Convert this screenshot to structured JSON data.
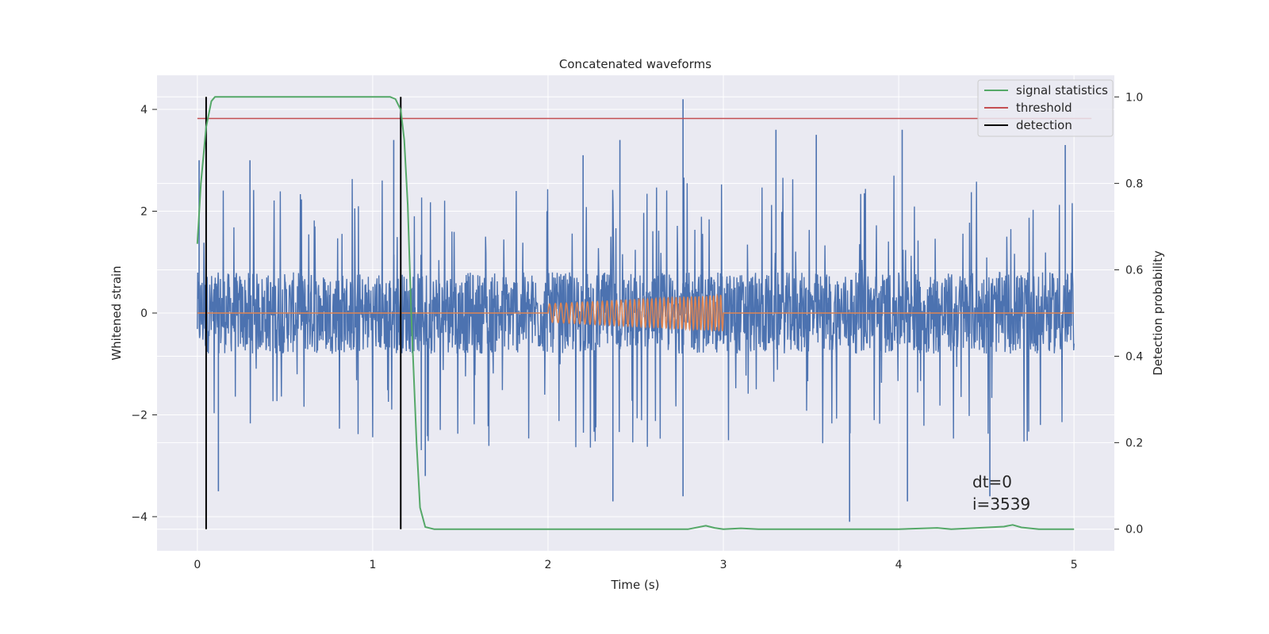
{
  "chart_data": {
    "type": "line",
    "title": "Concatenated waveforms",
    "xlabel": "Time (s)",
    "ylabel_left": "Whitened strain",
    "ylabel_right": "Detection probability",
    "xlim": [
      -0.23,
      5.23
    ],
    "ylim_left": [
      -4.67,
      4.67
    ],
    "ylim_right": [
      -0.05,
      1.05
    ],
    "x_ticks": [
      0,
      1,
      2,
      3,
      4,
      5
    ],
    "x_tick_labels": [
      "0",
      "1",
      "2",
      "3",
      "4",
      "5"
    ],
    "y_left_ticks": [
      -4,
      -2,
      0,
      2,
      4
    ],
    "y_left_tick_labels": [
      "−4",
      "−2",
      "0",
      "2",
      "4"
    ],
    "y_right_ticks": [
      0.0,
      0.2,
      0.4,
      0.6,
      0.8,
      1.0
    ],
    "y_right_tick_labels": [
      "0.0",
      "0.2",
      "0.4",
      "0.6",
      "0.8",
      "1.0"
    ],
    "grid": true,
    "legend_position": "top-right",
    "legend": [
      {
        "label": "signal statistics",
        "color": "#55a868"
      },
      {
        "label": "threshold",
        "color": "#c44e52"
      },
      {
        "label": "detection",
        "color": "#000000"
      }
    ],
    "colors": {
      "strain": "#4c72b0",
      "injected_waveform": "#dd8452",
      "signal_statistics": "#55a868",
      "threshold": "#c44e52",
      "detection": "#000000",
      "axes_background": "#eaeaf2",
      "grid": "#ffffff"
    },
    "series": [
      {
        "axis": "left",
        "color": "#4c72b0",
        "x_range": [
          0,
          5
        ],
        "typical_amplitude": 0.8,
        "max_value": 4.2,
        "min_value": -4.1,
        "peaks": [
          {
            "x": 0.01,
            "y": 3.0
          },
          {
            "x": 0.3,
            "y": 3.0
          },
          {
            "x": 1.12,
            "y": 3.4
          },
          {
            "x": 2.2,
            "y": 3.1
          },
          {
            "x": 2.41,
            "y": 3.4
          },
          {
            "x": 2.77,
            "y": 4.2
          },
          {
            "x": 3.3,
            "y": 3.6
          },
          {
            "x": 3.53,
            "y": 3.5
          },
          {
            "x": 4.02,
            "y": 3.6
          },
          {
            "x": 4.95,
            "y": 3.3
          },
          {
            "x": 2.37,
            "y": -3.7
          },
          {
            "x": 2.77,
            "y": -3.6
          },
          {
            "x": 3.72,
            "y": -4.1
          },
          {
            "x": 4.05,
            "y": -3.7
          },
          {
            "x": 4.52,
            "y": -3.6
          },
          {
            "x": 0.12,
            "y": -3.5
          },
          {
            "x": 1.3,
            "y": -3.2
          }
        ]
      },
      {
        "axis": "left",
        "color": "#dd8452",
        "x_start": 2.0,
        "x_end": 3.0,
        "amplitude_start": 0.18,
        "amplitude_end": 0.35,
        "cycles": 40
      }
    ],
    "signal_statistics": {
      "axis": "right",
      "x": [
        0.0,
        0.02,
        0.05,
        0.08,
        0.1,
        0.15,
        1.0,
        1.1,
        1.13,
        1.16,
        1.18,
        1.2,
        1.22,
        1.25,
        1.27,
        1.3,
        1.35,
        2.8,
        2.9,
        2.95,
        3.0,
        3.1,
        3.2,
        4.0,
        4.22,
        4.3,
        4.6,
        4.65,
        4.7,
        4.8,
        5.0
      ],
      "y": [
        0.66,
        0.8,
        0.93,
        0.99,
        1.0,
        1.0,
        1.0,
        1.0,
        0.995,
        0.97,
        0.9,
        0.75,
        0.5,
        0.2,
        0.05,
        0.005,
        0.0,
        0.0,
        0.008,
        0.003,
        0.0,
        0.002,
        0.0,
        0.0,
        0.003,
        0.0,
        0.006,
        0.01,
        0.004,
        0.0,
        0.0
      ]
    },
    "threshold": {
      "axis": "right",
      "value": 0.95,
      "x_range": [
        0,
        5.1
      ]
    },
    "detections": [
      0.05,
      1.16
    ],
    "annotation": [
      "dt=0",
      "i=3539"
    ]
  }
}
